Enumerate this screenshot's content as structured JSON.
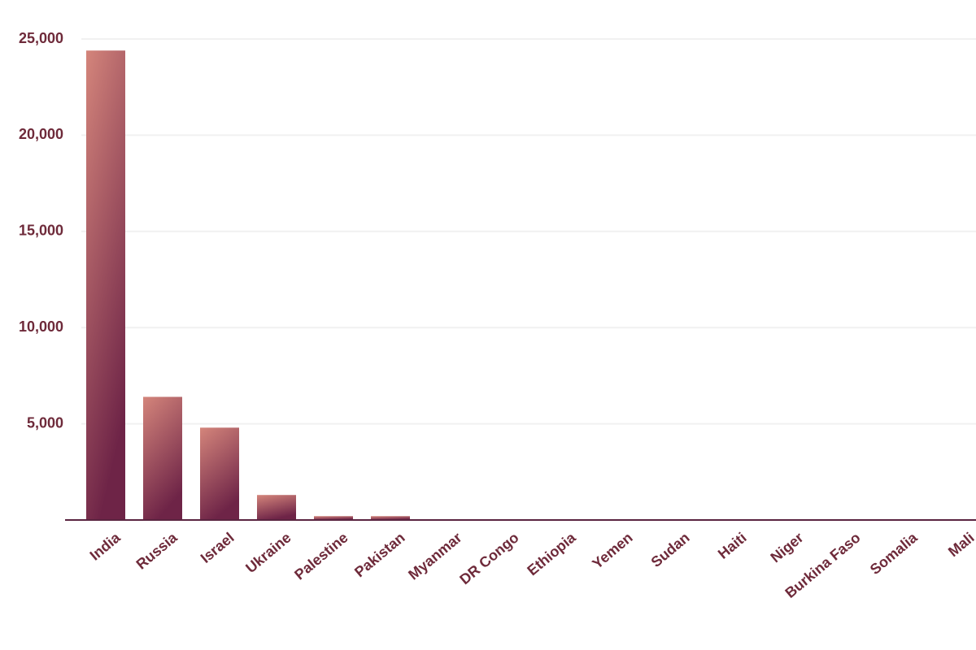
{
  "chart_data": {
    "type": "bar",
    "categories": [
      "India",
      "Russia",
      "Israel",
      "Ukraine",
      "Palestine",
      "Pakistan",
      "Myanmar",
      "DR Congo",
      "Ethiopia",
      "Yemen",
      "Sudan",
      "Haiti",
      "Niger",
      "Burkina Faso",
      "Somalia",
      "Mali"
    ],
    "values": [
      24400,
      6400,
      4800,
      1300,
      200,
      200,
      0,
      0,
      0,
      0,
      0,
      0,
      0,
      0,
      0,
      0
    ],
    "color_top": "#d4857b",
    "color_bottom": "#6e2447",
    "ylim": [
      0,
      25000
    ],
    "yticks": [
      {
        "value": 5000,
        "label": "5,000"
      },
      {
        "value": 10000,
        "label": "10,000"
      },
      {
        "value": 15000,
        "label": "15,000"
      },
      {
        "value": 20000,
        "label": "20,000"
      },
      {
        "value": 25000,
        "label": "25,000"
      }
    ],
    "grid": true
  }
}
